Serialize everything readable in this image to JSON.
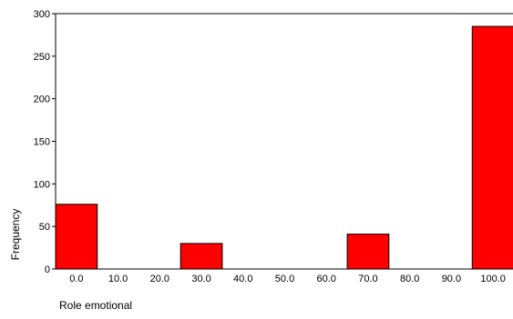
{
  "chart_data": {
    "type": "bar",
    "categories": [
      "0.0",
      "10.0",
      "20.0",
      "30.0",
      "40.0",
      "50.0",
      "60.0",
      "70.0",
      "80.0",
      "90.0",
      "100.0"
    ],
    "values": [
      76,
      0,
      0,
      30,
      0,
      0,
      0,
      41,
      0,
      0,
      285
    ],
    "xlabel": "Role emotional",
    "ylabel": "Frequency",
    "ylim": [
      0,
      300
    ],
    "yticks": [
      "0",
      "50",
      "100",
      "150",
      "200",
      "250",
      "300"
    ],
    "grid": false,
    "bar_color": "#ff0000",
    "bar_edge_color": "#000000"
  }
}
